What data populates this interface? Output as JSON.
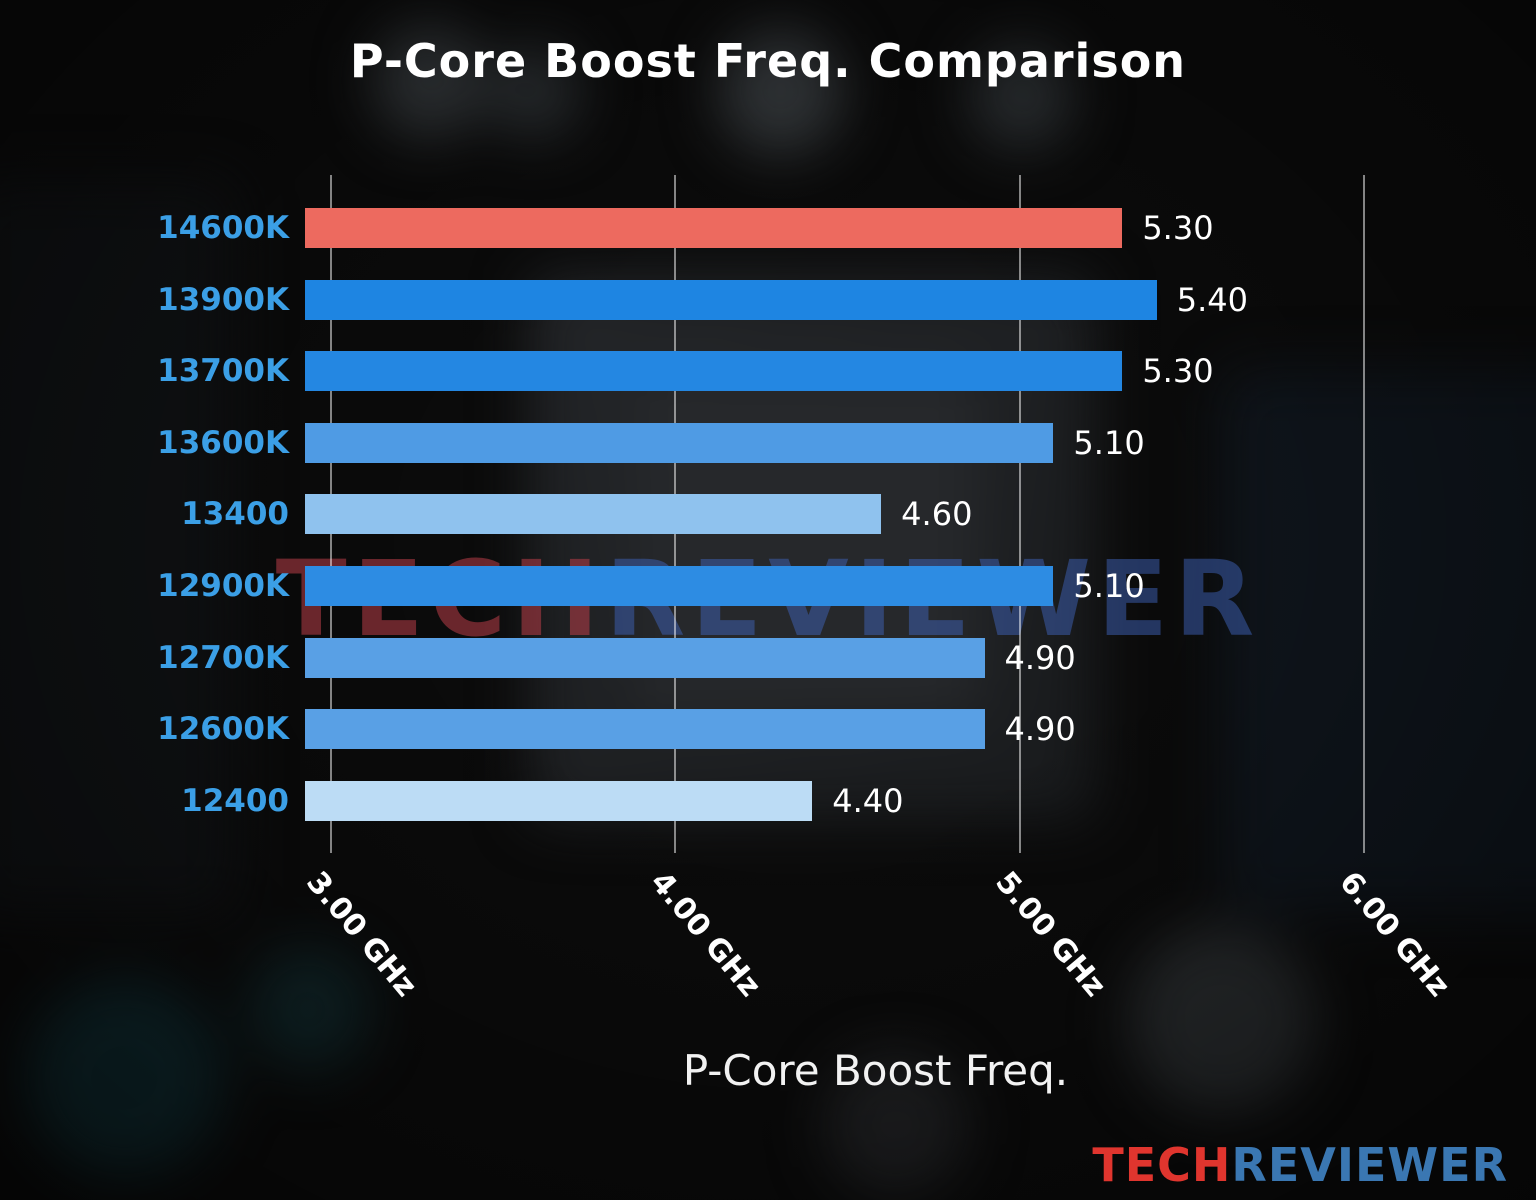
{
  "chart_data": {
    "type": "bar",
    "orientation": "horizontal",
    "title": "P-Core Boost Freq. Comparison",
    "xlabel": "P-Core Boost Freq.",
    "categories": [
      "14600K",
      "13900K",
      "13700K",
      "13600K",
      "13400",
      "12900K",
      "12700K",
      "12600K",
      "12400"
    ],
    "values": [
      5.3,
      5.4,
      5.3,
      5.1,
      4.6,
      5.1,
      4.9,
      4.9,
      4.4
    ],
    "value_labels": [
      "5.30",
      "5.40",
      "5.30",
      "5.10",
      "4.60",
      "5.10",
      "4.90",
      "4.90",
      "4.40"
    ],
    "bar_colors": [
      "#ed6a5f",
      "#1e85e2",
      "#2487e2",
      "#4f9be4",
      "#8fc2ee",
      "#2d8ce3",
      "#59a0e5",
      "#59a0e5",
      "#bcdcf5"
    ],
    "highlight_index": 0,
    "highlight_color": "#ed6a5f",
    "x_ticks": [
      {
        "value": 3,
        "label": "3.00 GHz"
      },
      {
        "value": 4,
        "label": "4.00 GHz"
      },
      {
        "value": 5,
        "label": "5.00 GHz"
      },
      {
        "value": 6,
        "label": "6.00 GHz"
      }
    ],
    "xlim": [
      2.93,
      6.45
    ],
    "grid": true,
    "legend": false,
    "category_label_color": "#3b9fe6",
    "value_label_color": "#ffffff"
  },
  "watermark": {
    "part1": "TECH",
    "part2": "REVIEWER"
  },
  "logo": {
    "part1": "TECH",
    "part2": "REVIEWER"
  }
}
